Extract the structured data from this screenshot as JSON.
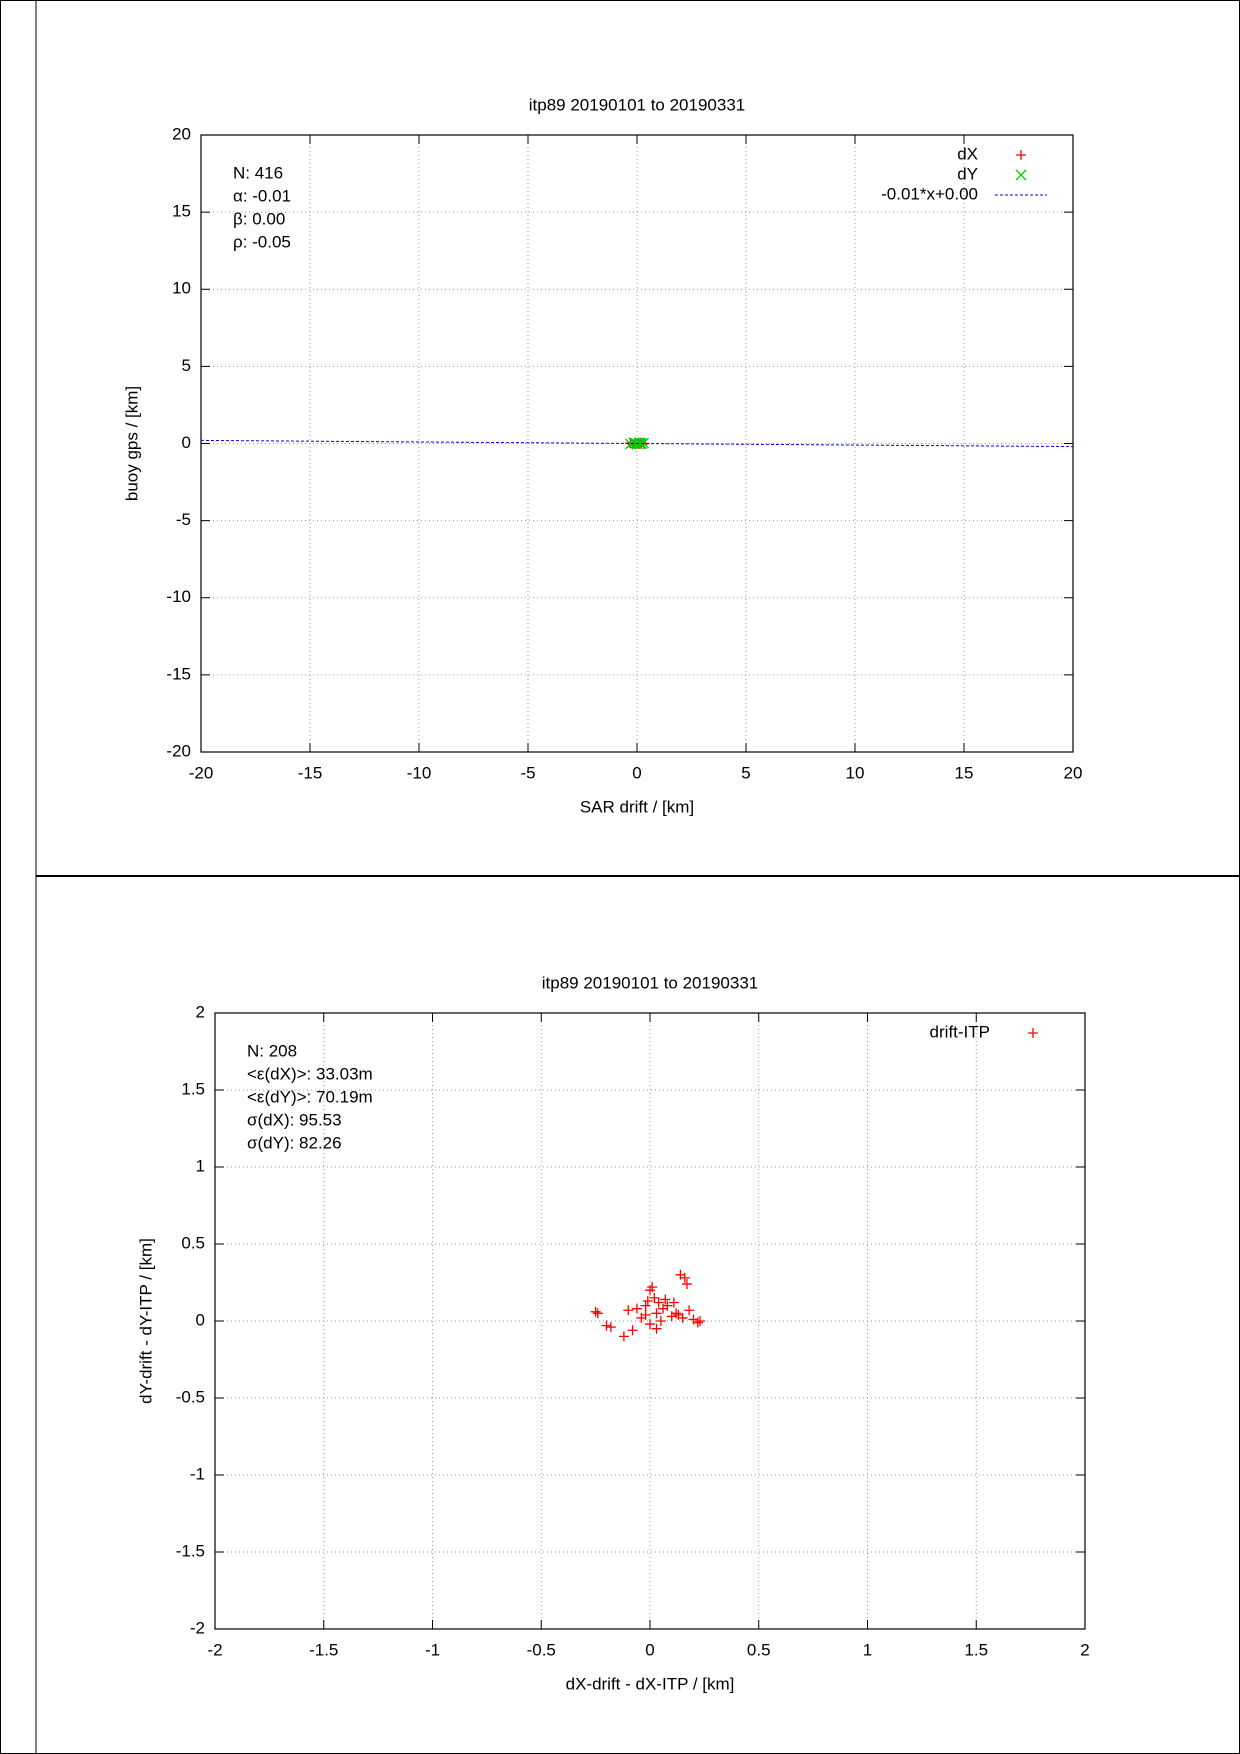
{
  "chart_data": [
    {
      "type": "scatter",
      "title": "itp89 20190101 to 20190331",
      "xlabel": "SAR drift / [km]",
      "ylabel": "buoy gps / [km]",
      "xlim": [
        -20,
        20
      ],
      "ylim": [
        -20,
        20
      ],
      "xticks": [
        -20,
        -15,
        -10,
        -5,
        0,
        5,
        10,
        15,
        20
      ],
      "yticks": [
        -20,
        -15,
        -10,
        -5,
        0,
        5,
        10,
        15,
        20
      ],
      "grid": true,
      "legend": "upper right",
      "annotations": [
        "N: 416",
        "α: -0.01",
        "β: 0.00",
        "ρ: -0.05"
      ],
      "series": [
        {
          "name": "dX",
          "color": "#ff0000",
          "marker": "+",
          "x": [
            -0.3,
            -0.2,
            -0.1,
            0,
            0.1,
            0.2,
            0.3,
            0.05
          ],
          "values": [
            0.02,
            -0.05,
            0.04,
            0.01,
            -0.03,
            0.05,
            -0.02,
            0.0
          ]
        },
        {
          "name": "dY",
          "color": "#00cc00",
          "marker": "x",
          "x": [
            -0.3,
            -0.15,
            -0.05,
            0,
            0.1,
            0.2,
            0.3,
            0.15
          ],
          "values": [
            -0.03,
            0.05,
            0.02,
            -0.04,
            0.06,
            -0.01,
            0.03,
            0.0
          ]
        },
        {
          "name": "-0.01*x+0.00",
          "color": "#0000ff",
          "marker": "line",
          "x": [
            -20,
            20
          ],
          "values": [
            0.2,
            -0.2
          ]
        }
      ]
    },
    {
      "type": "scatter",
      "title": "itp89 20190101 to 20190331",
      "xlabel": "dX-drift - dX-ITP / [km]",
      "ylabel": "dY-drift - dY-ITP / [km]",
      "xlim": [
        -2,
        2
      ],
      "ylim": [
        -2,
        2
      ],
      "xticks": [
        -2,
        -1.5,
        -1,
        -0.5,
        0,
        0.5,
        1,
        1.5,
        2
      ],
      "yticks": [
        -2,
        -1.5,
        -1,
        -0.5,
        0,
        0.5,
        1,
        1.5,
        2
      ],
      "grid": true,
      "legend": "upper right",
      "annotations": [
        "N: 208",
        "<ε(dX)>:  33.03m",
        "<ε(dY)>: 70.19m",
        "σ(dX):  95.53",
        "σ(dY):  82.26"
      ],
      "series": [
        {
          "name": "drift-ITP",
          "color": "#ff0000",
          "marker": "+",
          "x": [
            -0.25,
            -0.24,
            -0.2,
            -0.18,
            -0.12,
            -0.08,
            -0.1,
            -0.06,
            -0.04,
            -0.02,
            0,
            0.01,
            0.02,
            0.03,
            0.04,
            0.05,
            0.06,
            0.08,
            0.1,
            0.12,
            0.14,
            0.16,
            0.17,
            0.15,
            0.18,
            0.2,
            0.22,
            0.23,
            0,
            -0.02,
            0.07,
            0.03,
            0.11,
            0.13,
            -0.01
          ],
          "values": [
            0.06,
            0.05,
            -0.03,
            -0.04,
            -0.1,
            -0.06,
            0.07,
            0.08,
            0.02,
            0.1,
            0.2,
            0.22,
            0.15,
            0.05,
            0.12,
            0,
            0.08,
            0.1,
            0.03,
            0.05,
            0.3,
            0.28,
            0.24,
            0.02,
            0.07,
            0.01,
            -0.01,
            0,
            -0.02,
            0.04,
            0.14,
            -0.05,
            0.12,
            0.04,
            0.13
          ]
        }
      ]
    }
  ]
}
